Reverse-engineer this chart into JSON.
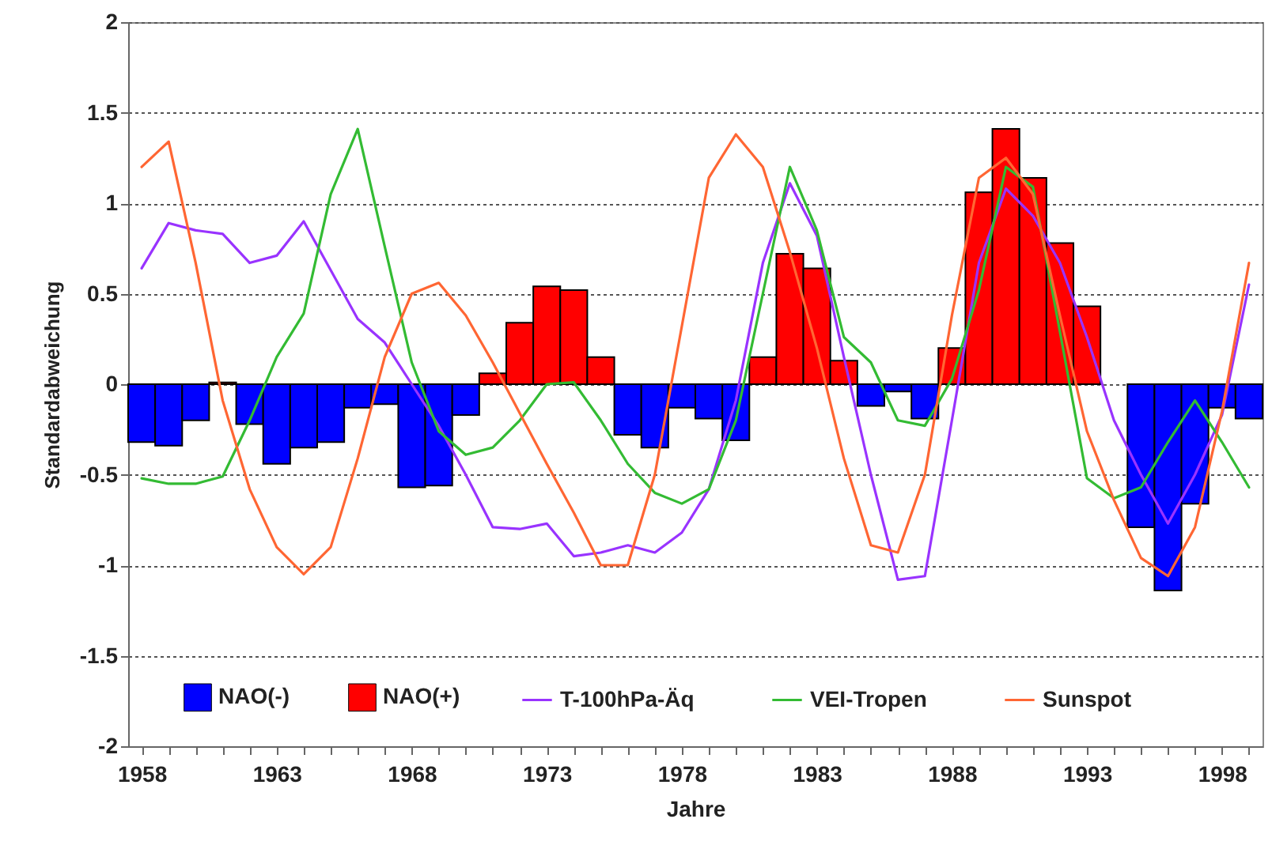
{
  "chart_data": {
    "type": "bar",
    "xlabel": "Jahre",
    "ylabel": "Standardabweichung",
    "x": [
      1958,
      1959,
      1960,
      1961,
      1962,
      1963,
      1964,
      1965,
      1966,
      1967,
      1968,
      1969,
      1970,
      1971,
      1972,
      1973,
      1974,
      1975,
      1976,
      1977,
      1978,
      1979,
      1980,
      1981,
      1982,
      1983,
      1984,
      1985,
      1986,
      1987,
      1988,
      1989,
      1990,
      1991,
      1992,
      1993,
      1994,
      1995,
      1996,
      1997,
      1998,
      1999
    ],
    "xlim": [
      1957.5,
      1999.5
    ],
    "xticks": [
      1958,
      {
        "value": 1959,
        "label": null
      },
      {
        "value": 1960,
        "label": null
      },
      {
        "value": 1961,
        "label": null
      },
      {
        "value": 1962,
        "label": null
      },
      1963,
      {
        "value": 1964,
        "label": null
      },
      {
        "value": 1965,
        "label": null
      },
      {
        "value": 1966,
        "label": null
      },
      {
        "value": 1967,
        "label": null
      },
      1968,
      {
        "value": 1969,
        "label": null
      },
      {
        "value": 1970,
        "label": null
      },
      {
        "value": 1971,
        "label": null
      },
      {
        "value": 1972,
        "label": null
      },
      1973,
      {
        "value": 1974,
        "label": null
      },
      {
        "value": 1975,
        "label": null
      },
      {
        "value": 1976,
        "label": null
      },
      {
        "value": 1977,
        "label": null
      },
      1978,
      {
        "value": 1979,
        "label": null
      },
      {
        "value": 1980,
        "label": null
      },
      {
        "value": 1981,
        "label": null
      },
      {
        "value": 1982,
        "label": null
      },
      1983,
      {
        "value": 1984,
        "label": null
      },
      {
        "value": 1985,
        "label": null
      },
      {
        "value": 1986,
        "label": null
      },
      {
        "value": 1987,
        "label": null
      },
      1988,
      {
        "value": 1989,
        "label": null
      },
      {
        "value": 1990,
        "label": null
      },
      {
        "value": 1991,
        "label": null
      },
      {
        "value": 1992,
        "label": null
      },
      1993,
      {
        "value": 1994,
        "label": null
      },
      {
        "value": 1995,
        "label": null
      },
      {
        "value": 1996,
        "label": null
      },
      {
        "value": 1997,
        "label": null
      },
      1998,
      {
        "value": 1999,
        "label": null
      }
    ],
    "ylim": [
      -2,
      2
    ],
    "yticks": [
      -2,
      -1.5,
      -1,
      -0.5,
      0,
      0.5,
      1,
      1.5,
      2
    ],
    "grid": "y",
    "legend": "bottom",
    "marker": "none",
    "series": [
      {
        "name": "NAO(-)",
        "color": "#0000ff",
        "values": [
          -0.32,
          -0.34,
          -0.2,
          null,
          -0.22,
          -0.44,
          -0.35,
          -0.32,
          -0.13,
          -0.11,
          -0.57,
          -0.56,
          -0.17,
          null,
          null,
          null,
          null,
          null,
          -0.28,
          -0.35,
          -0.13,
          -0.19,
          -0.31,
          null,
          null,
          null,
          null,
          -0.12,
          -0.04,
          -0.19,
          null,
          null,
          null,
          null,
          null,
          null,
          null,
          -0.79,
          -1.14,
          -0.66,
          -0.13,
          -0.19
        ]
      },
      {
        "name": "NAO(+)",
        "color": "#ff0000",
        "values": [
          null,
          null,
          null,
          0.01,
          null,
          null,
          null,
          null,
          null,
          null,
          null,
          null,
          null,
          0.06,
          0.34,
          0.54,
          0.52,
          0.15,
          null,
          null,
          null,
          null,
          null,
          0.15,
          0.72,
          0.64,
          0.13,
          null,
          null,
          null,
          0.2,
          1.06,
          1.41,
          1.14,
          0.78,
          0.43,
          null,
          null,
          null,
          null,
          null,
          null
        ]
      },
      {
        "name": "T-100hPa-Äq",
        "type": "line",
        "color": "#9933ff",
        "values": [
          0.64,
          0.89,
          0.85,
          0.83,
          0.67,
          0.71,
          0.9,
          0.63,
          0.36,
          0.23,
          0.0,
          -0.23,
          -0.5,
          -0.79,
          -0.8,
          -0.77,
          -0.95,
          -0.93,
          -0.89,
          -0.93,
          -0.82,
          -0.58,
          -0.09,
          0.67,
          1.11,
          0.82,
          0.15,
          -0.5,
          -1.08,
          -1.06,
          -0.2,
          0.67,
          1.08,
          0.93,
          0.67,
          0.26,
          -0.2,
          -0.5,
          -0.77,
          -0.5,
          -0.17,
          0.55
        ]
      },
      {
        "name": "VEI-Tropen",
        "type": "line",
        "color": "#33bb33",
        "values": [
          -0.52,
          -0.55,
          -0.55,
          -0.51,
          -0.2,
          0.15,
          0.39,
          1.05,
          1.41,
          0.76,
          0.12,
          -0.26,
          -0.39,
          -0.35,
          -0.2,
          0.0,
          0.01,
          -0.2,
          -0.44,
          -0.6,
          -0.66,
          -0.58,
          -0.2,
          0.5,
          1.2,
          0.85,
          0.26,
          0.12,
          -0.2,
          -0.23,
          0.03,
          0.52,
          1.2,
          1.09,
          0.29,
          -0.52,
          -0.63,
          -0.57,
          -0.32,
          -0.09,
          -0.32,
          -0.57
        ]
      },
      {
        "name": "Sunspot",
        "type": "line",
        "color": "#ff6633",
        "values": [
          1.2,
          1.34,
          0.67,
          -0.09,
          -0.58,
          -0.9,
          -1.05,
          -0.9,
          -0.41,
          0.15,
          0.5,
          0.56,
          0.38,
          0.12,
          -0.16,
          -0.44,
          -0.71,
          -1.0,
          -1.0,
          -0.5,
          0.32,
          1.14,
          1.38,
          1.2,
          0.73,
          0.2,
          -0.41,
          -0.89,
          -0.93,
          -0.5,
          0.38,
          1.14,
          1.25,
          1.05,
          0.38,
          -0.26,
          -0.64,
          -0.96,
          -1.06,
          -0.79,
          -0.15,
          0.67
        ]
      }
    ]
  }
}
